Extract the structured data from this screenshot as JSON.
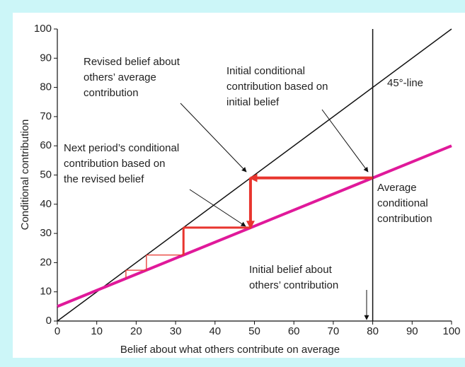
{
  "chart_data": {
    "type": "line",
    "xlabel": "Belief about what others contribute on average",
    "ylabel": "Conditional contribution",
    "xlim": [
      0,
      100
    ],
    "ylim": [
      0,
      100
    ],
    "xticks": [
      0,
      10,
      20,
      30,
      40,
      50,
      60,
      70,
      80,
      90,
      100
    ],
    "yticks": [
      0,
      10,
      20,
      30,
      40,
      50,
      60,
      70,
      80,
      90,
      100
    ],
    "series": [
      {
        "color": "#111111",
        "x": [
          0,
          100
        ],
        "values": [
          0,
          100
        ]
      },
      {
        "color": "#e0199a",
        "x": [
          0,
          100
        ],
        "values": [
          5,
          60
        ]
      },
      {
        "color": "#111111",
        "x": [
          80,
          80
        ],
        "values": [
          0,
          100
        ]
      }
    ],
    "staircase": {
      "color": "#e8352e",
      "x": [
        80,
        49,
        49,
        32,
        32,
        22.6,
        22.6,
        17.4,
        17.4
      ],
      "values": [
        49,
        49,
        32,
        32,
        22.6,
        22.6,
        17.4,
        17.4,
        14.6
      ]
    },
    "annotations": [
      {
        "lines": [
          "Revised belief about",
          "others’ average",
          "contribution"
        ]
      },
      {
        "lines": [
          "Initial conditional",
          "contribution based on",
          "initial belief"
        ]
      },
      {
        "lines": [
          "45°-line"
        ]
      },
      {
        "lines": [
          "Next period’s conditional",
          "contribution based on",
          "the revised belief"
        ]
      },
      {
        "lines": [
          "Average",
          "conditional",
          "contribution"
        ]
      },
      {
        "lines": [
          "Initial belief about",
          "others’ contribution"
        ]
      }
    ]
  }
}
